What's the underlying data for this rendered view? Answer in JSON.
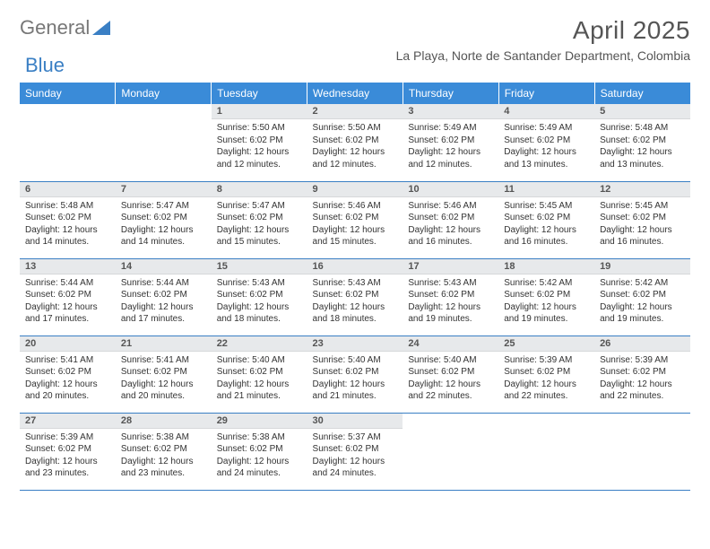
{
  "logo": {
    "text1": "General",
    "text2": "Blue",
    "color1": "#777777",
    "color2": "#3a7fc4"
  },
  "header": {
    "month_title": "April 2025",
    "location": "La Playa, Norte de Santander Department, Colombia"
  },
  "calendar": {
    "type": "table",
    "header_bg": "#3a8bd8",
    "header_fg": "#ffffff",
    "border_color": "#3a7fc4",
    "daynum_bg": "#e7e9eb",
    "columns": [
      "Sunday",
      "Monday",
      "Tuesday",
      "Wednesday",
      "Thursday",
      "Friday",
      "Saturday"
    ],
    "weeks": [
      [
        null,
        null,
        {
          "n": "1",
          "sunrise": "5:50 AM",
          "sunset": "6:02 PM",
          "daylight": "12 hours and 12 minutes."
        },
        {
          "n": "2",
          "sunrise": "5:50 AM",
          "sunset": "6:02 PM",
          "daylight": "12 hours and 12 minutes."
        },
        {
          "n": "3",
          "sunrise": "5:49 AM",
          "sunset": "6:02 PM",
          "daylight": "12 hours and 12 minutes."
        },
        {
          "n": "4",
          "sunrise": "5:49 AM",
          "sunset": "6:02 PM",
          "daylight": "12 hours and 13 minutes."
        },
        {
          "n": "5",
          "sunrise": "5:48 AM",
          "sunset": "6:02 PM",
          "daylight": "12 hours and 13 minutes."
        }
      ],
      [
        {
          "n": "6",
          "sunrise": "5:48 AM",
          "sunset": "6:02 PM",
          "daylight": "12 hours and 14 minutes."
        },
        {
          "n": "7",
          "sunrise": "5:47 AM",
          "sunset": "6:02 PM",
          "daylight": "12 hours and 14 minutes."
        },
        {
          "n": "8",
          "sunrise": "5:47 AM",
          "sunset": "6:02 PM",
          "daylight": "12 hours and 15 minutes."
        },
        {
          "n": "9",
          "sunrise": "5:46 AM",
          "sunset": "6:02 PM",
          "daylight": "12 hours and 15 minutes."
        },
        {
          "n": "10",
          "sunrise": "5:46 AM",
          "sunset": "6:02 PM",
          "daylight": "12 hours and 16 minutes."
        },
        {
          "n": "11",
          "sunrise": "5:45 AM",
          "sunset": "6:02 PM",
          "daylight": "12 hours and 16 minutes."
        },
        {
          "n": "12",
          "sunrise": "5:45 AM",
          "sunset": "6:02 PM",
          "daylight": "12 hours and 16 minutes."
        }
      ],
      [
        {
          "n": "13",
          "sunrise": "5:44 AM",
          "sunset": "6:02 PM",
          "daylight": "12 hours and 17 minutes."
        },
        {
          "n": "14",
          "sunrise": "5:44 AM",
          "sunset": "6:02 PM",
          "daylight": "12 hours and 17 minutes."
        },
        {
          "n": "15",
          "sunrise": "5:43 AM",
          "sunset": "6:02 PM",
          "daylight": "12 hours and 18 minutes."
        },
        {
          "n": "16",
          "sunrise": "5:43 AM",
          "sunset": "6:02 PM",
          "daylight": "12 hours and 18 minutes."
        },
        {
          "n": "17",
          "sunrise": "5:43 AM",
          "sunset": "6:02 PM",
          "daylight": "12 hours and 19 minutes."
        },
        {
          "n": "18",
          "sunrise": "5:42 AM",
          "sunset": "6:02 PM",
          "daylight": "12 hours and 19 minutes."
        },
        {
          "n": "19",
          "sunrise": "5:42 AM",
          "sunset": "6:02 PM",
          "daylight": "12 hours and 19 minutes."
        }
      ],
      [
        {
          "n": "20",
          "sunrise": "5:41 AM",
          "sunset": "6:02 PM",
          "daylight": "12 hours and 20 minutes."
        },
        {
          "n": "21",
          "sunrise": "5:41 AM",
          "sunset": "6:02 PM",
          "daylight": "12 hours and 20 minutes."
        },
        {
          "n": "22",
          "sunrise": "5:40 AM",
          "sunset": "6:02 PM",
          "daylight": "12 hours and 21 minutes."
        },
        {
          "n": "23",
          "sunrise": "5:40 AM",
          "sunset": "6:02 PM",
          "daylight": "12 hours and 21 minutes."
        },
        {
          "n": "24",
          "sunrise": "5:40 AM",
          "sunset": "6:02 PM",
          "daylight": "12 hours and 22 minutes."
        },
        {
          "n": "25",
          "sunrise": "5:39 AM",
          "sunset": "6:02 PM",
          "daylight": "12 hours and 22 minutes."
        },
        {
          "n": "26",
          "sunrise": "5:39 AM",
          "sunset": "6:02 PM",
          "daylight": "12 hours and 22 minutes."
        }
      ],
      [
        {
          "n": "27",
          "sunrise": "5:39 AM",
          "sunset": "6:02 PM",
          "daylight": "12 hours and 23 minutes."
        },
        {
          "n": "28",
          "sunrise": "5:38 AM",
          "sunset": "6:02 PM",
          "daylight": "12 hours and 23 minutes."
        },
        {
          "n": "29",
          "sunrise": "5:38 AM",
          "sunset": "6:02 PM",
          "daylight": "12 hours and 24 minutes."
        },
        {
          "n": "30",
          "sunrise": "5:37 AM",
          "sunset": "6:02 PM",
          "daylight": "12 hours and 24 minutes."
        },
        null,
        null,
        null
      ]
    ],
    "labels": {
      "sunrise": "Sunrise:",
      "sunset": "Sunset:",
      "daylight": "Daylight:"
    }
  }
}
